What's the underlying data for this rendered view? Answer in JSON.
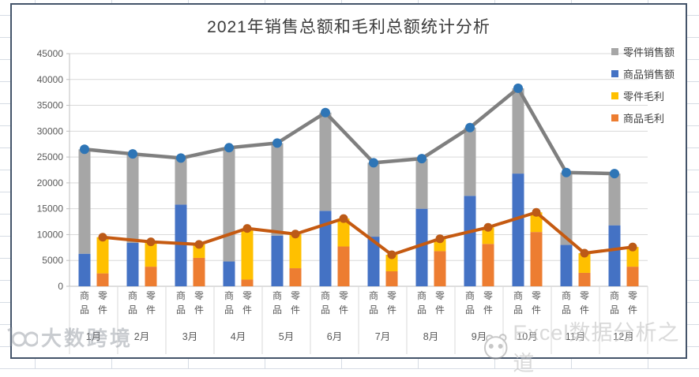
{
  "chart_data": {
    "type": "combo_stacked_bar_line",
    "title": "2021年销售总额和毛利总额统计分析",
    "categories": [
      "1月",
      "2月",
      "3月",
      "4月",
      "5月",
      "6月",
      "7月",
      "8月",
      "9月",
      "10月",
      "11月",
      "12月"
    ],
    "sub_category_labels": [
      "商品",
      "零件"
    ],
    "y_axis": {
      "min": 0,
      "max": 45000,
      "step": 5000
    },
    "grid": true,
    "legend_position": "right",
    "bar_series": [
      {
        "name": "商品销售额",
        "stack": "sales",
        "color": "#4472C4",
        "values": [
          6300,
          8400,
          15800,
          4800,
          9800,
          14600,
          9600,
          15000,
          17500,
          21800,
          8000,
          11800
        ]
      },
      {
        "name": "零件销售额",
        "stack": "sales",
        "color": "#A6A6A6",
        "values": [
          20200,
          17200,
          9000,
          22000,
          17900,
          19000,
          14300,
          9700,
          13200,
          16500,
          14000,
          10000
        ]
      },
      {
        "name": "商品毛利",
        "stack": "profit",
        "color": "#ED7D31",
        "values": [
          2500,
          3800,
          5500,
          1300,
          3500,
          7700,
          2900,
          6800,
          8200,
          10500,
          2600,
          3800
        ]
      },
      {
        "name": "零件毛利",
        "stack": "profit",
        "color": "#FFC000",
        "values": [
          7000,
          4800,
          2600,
          9900,
          6600,
          5400,
          3200,
          2400,
          3200,
          3800,
          3800,
          3800
        ]
      }
    ],
    "line_series": [
      {
        "id": "sales-total-line",
        "stack": "sales",
        "color": "#7F7F7F",
        "marker_color": "#2E75B6",
        "values": [
          26500,
          25600,
          24800,
          26800,
          27700,
          33600,
          23900,
          24700,
          30700,
          38300,
          22000,
          21800
        ]
      },
      {
        "id": "profit-total-line",
        "stack": "profit",
        "color": "#C55A11",
        "marker_color": "#BC5A17",
        "values": [
          9500,
          8600,
          8100,
          11200,
          10100,
          13100,
          6100,
          9200,
          11400,
          14300,
          6400,
          7600
        ]
      }
    ]
  },
  "legend": {
    "items": [
      {
        "label": "零件销售额",
        "color": "#A6A6A6"
      },
      {
        "label": "商品销售额",
        "color": "#4472C4"
      },
      {
        "label": "零件毛利",
        "color": "#FFC000"
      },
      {
        "label": "商品毛利",
        "color": "#ED7D31"
      }
    ]
  },
  "watermarks": {
    "bottom_left": "大数跨境",
    "bottom_right": "Excel数据分析之道"
  },
  "colors": {
    "chart_border": "#44546A",
    "axis_text": "#595959",
    "gridline": "#D9D9D9",
    "axis_line": "#BFBFBF",
    "title_text": "#3B3B3B"
  }
}
